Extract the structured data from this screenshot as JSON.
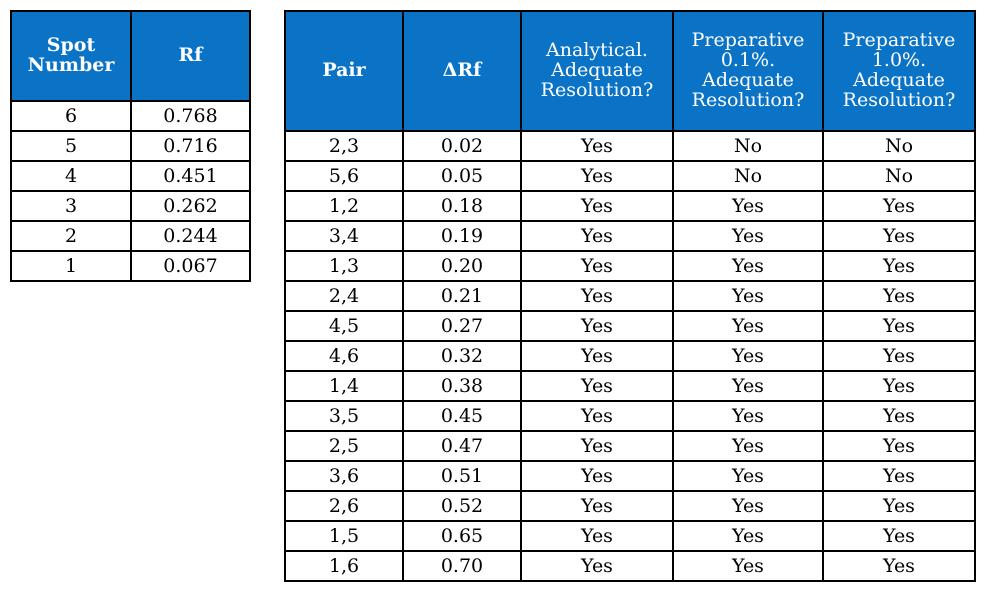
{
  "spot_table": {
    "headers": [
      "Spot Number",
      "Rf"
    ],
    "rows": [
      {
        "spot": "6",
        "rf": "0.768"
      },
      {
        "spot": "5",
        "rf": "0.716"
      },
      {
        "spot": "4",
        "rf": "0.451"
      },
      {
        "spot": "3",
        "rf": "0.262"
      },
      {
        "spot": "2",
        "rf": "0.244"
      },
      {
        "spot": "1",
        "rf": "0.067"
      }
    ]
  },
  "pair_table": {
    "headers": [
      "Pair",
      "ΔRf",
      "Analytical. Adequate Resolution?",
      "Preparative 0.1%. Adequate Resolution?",
      "Preparative 1.0%. Adequate Resolution?"
    ],
    "rows": [
      {
        "pair": "2,3",
        "delta": "0.02",
        "analytical": "Yes",
        "prep01": "No",
        "prep10": "No"
      },
      {
        "pair": "5,6",
        "delta": "0.05",
        "analytical": "Yes",
        "prep01": "No",
        "prep10": "No"
      },
      {
        "pair": "1,2",
        "delta": "0.18",
        "analytical": "Yes",
        "prep01": "Yes",
        "prep10": "Yes"
      },
      {
        "pair": "3,4",
        "delta": "0.19",
        "analytical": "Yes",
        "prep01": "Yes",
        "prep10": "Yes"
      },
      {
        "pair": "1,3",
        "delta": "0.20",
        "analytical": "Yes",
        "prep01": "Yes",
        "prep10": "Yes"
      },
      {
        "pair": "2,4",
        "delta": "0.21",
        "analytical": "Yes",
        "prep01": "Yes",
        "prep10": "Yes"
      },
      {
        "pair": "4,5",
        "delta": "0.27",
        "analytical": "Yes",
        "prep01": "Yes",
        "prep10": "Yes"
      },
      {
        "pair": "4,6",
        "delta": "0.32",
        "analytical": "Yes",
        "prep01": "Yes",
        "prep10": "Yes"
      },
      {
        "pair": "1,4",
        "delta": "0.38",
        "analytical": "Yes",
        "prep01": "Yes",
        "prep10": "Yes"
      },
      {
        "pair": "3,5",
        "delta": "0.45",
        "analytical": "Yes",
        "prep01": "Yes",
        "prep10": "Yes"
      },
      {
        "pair": "2,5",
        "delta": "0.47",
        "analytical": "Yes",
        "prep01": "Yes",
        "prep10": "Yes"
      },
      {
        "pair": "3,6",
        "delta": "0.51",
        "analytical": "Yes",
        "prep01": "Yes",
        "prep10": "Yes"
      },
      {
        "pair": "2,6",
        "delta": "0.52",
        "analytical": "Yes",
        "prep01": "Yes",
        "prep10": "Yes"
      },
      {
        "pair": "1,5",
        "delta": "0.65",
        "analytical": "Yes",
        "prep01": "Yes",
        "prep10": "Yes"
      },
      {
        "pair": "1,6",
        "delta": "0.70",
        "analytical": "Yes",
        "prep01": "Yes",
        "prep10": "Yes"
      }
    ]
  },
  "colors": {
    "header_bg": "#0a73c6",
    "header_text": "#ffffff",
    "border": "#000000"
  }
}
